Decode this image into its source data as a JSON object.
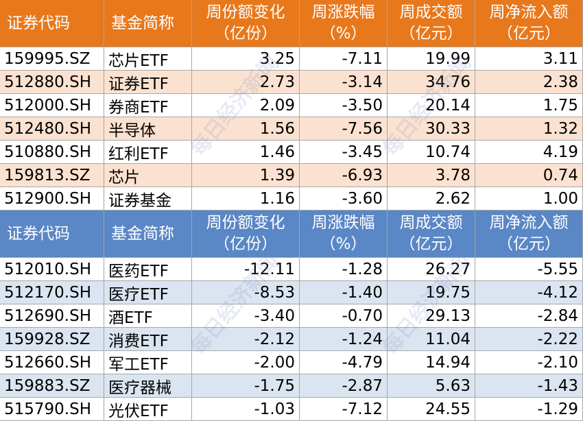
{
  "watermark": "每日经济新闻",
  "tables": [
    {
      "header": [
        [
          "证券代码"
        ],
        [
          "基金简称"
        ],
        [
          "周份额变化",
          "（亿份）"
        ],
        [
          "周涨跌幅",
          "（%）"
        ],
        [
          "周成交额",
          "（亿元）"
        ],
        [
          "周净流入额",
          "（亿元）"
        ]
      ],
      "rows": [
        [
          "159995.SZ",
          "芯片ETF",
          "3.25",
          "-7.11",
          "19.99",
          "3.11"
        ],
        [
          "512880.SH",
          "证券ETF",
          "2.73",
          "-3.14",
          "34.76",
          "2.38"
        ],
        [
          "512000.SH",
          "券商ETF",
          "2.09",
          "-3.50",
          "20.14",
          "1.75"
        ],
        [
          "512480.SH",
          "半导体",
          "1.56",
          "-7.56",
          "30.33",
          "1.32"
        ],
        [
          "510880.SH",
          "红利ETF",
          "1.46",
          "-3.45",
          "10.74",
          "4.19"
        ],
        [
          "159813.SZ",
          "芯片",
          "1.39",
          "-6.93",
          "3.78",
          "0.74"
        ],
        [
          "512900.SH",
          "证券基金",
          "1.16",
          "-3.60",
          "2.62",
          "1.00"
        ]
      ]
    },
    {
      "header": [
        [
          "证券代码"
        ],
        [
          "基金简称"
        ],
        [
          "周份额变化",
          "（亿份）"
        ],
        [
          "周涨跌幅",
          "（%）"
        ],
        [
          "周成交额",
          "（亿元）"
        ],
        [
          "周净流入额",
          "（亿元）"
        ]
      ],
      "rows": [
        [
          "512010.SH",
          "医药ETF",
          "-12.11",
          "-1.28",
          "26.27",
          "-5.55"
        ],
        [
          "512170.SH",
          "医疗ETF",
          "-8.53",
          "-1.40",
          "19.75",
          "-4.12"
        ],
        [
          "512690.SH",
          "酒ETF",
          "-3.40",
          "-0.70",
          "29.13",
          "-2.84"
        ],
        [
          "159928.SZ",
          "消费ETF",
          "-2.12",
          "-1.24",
          "11.04",
          "-2.22"
        ],
        [
          "512660.SH",
          "军工ETF",
          "-2.00",
          "-4.79",
          "14.94",
          "-2.10"
        ],
        [
          "159883.SZ",
          "医疗器械",
          "-1.75",
          "-2.87",
          "5.63",
          "-1.43"
        ],
        [
          "515790.SH",
          "光伏ETF",
          "-1.03",
          "-7.12",
          "24.55",
          "-1.29"
        ]
      ]
    }
  ]
}
